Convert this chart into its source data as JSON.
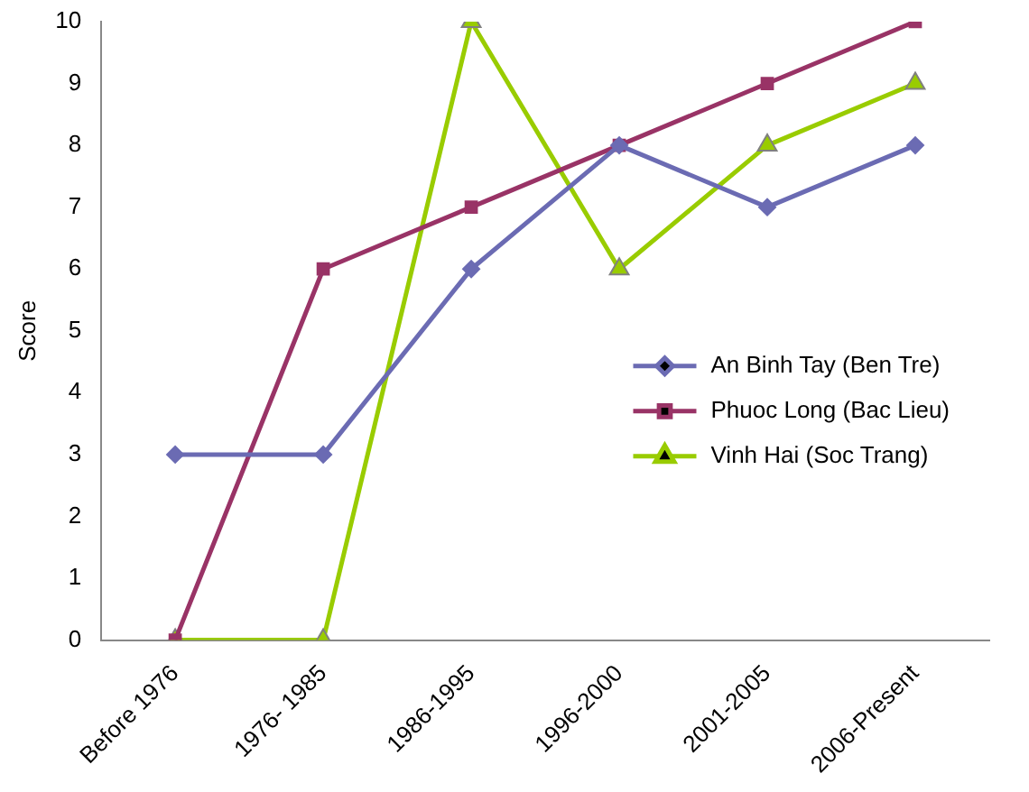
{
  "chart_data": {
    "type": "line",
    "ylabel": "Score",
    "categories": [
      "Before 1976",
      "1976- 1985",
      "1986-1995",
      "1996-2000",
      "2001-2005",
      "2006-Present"
    ],
    "series": [
      {
        "name": "An Binh Tay (Ben Tre)",
        "color": "#6b6bb3",
        "marker": "diamond",
        "values": [
          3,
          3,
          6,
          8,
          7,
          8
        ]
      },
      {
        "name": "Phuoc Long (Bac Lieu)",
        "color": "#993366",
        "marker": "square",
        "values": [
          0,
          6,
          7,
          8,
          9,
          10
        ]
      },
      {
        "name": "Vinh Hai (Soc Trang)",
        "color": "#99cc00",
        "marker": "triangle",
        "values": [
          0,
          0,
          10,
          6,
          8,
          9
        ]
      }
    ],
    "ylim": [
      0,
      10
    ],
    "yticks": [
      0,
      1,
      2,
      3,
      4,
      5,
      6,
      7,
      8,
      9,
      10
    ],
    "grid": false,
    "legend": "right",
    "line_style": "solid"
  }
}
